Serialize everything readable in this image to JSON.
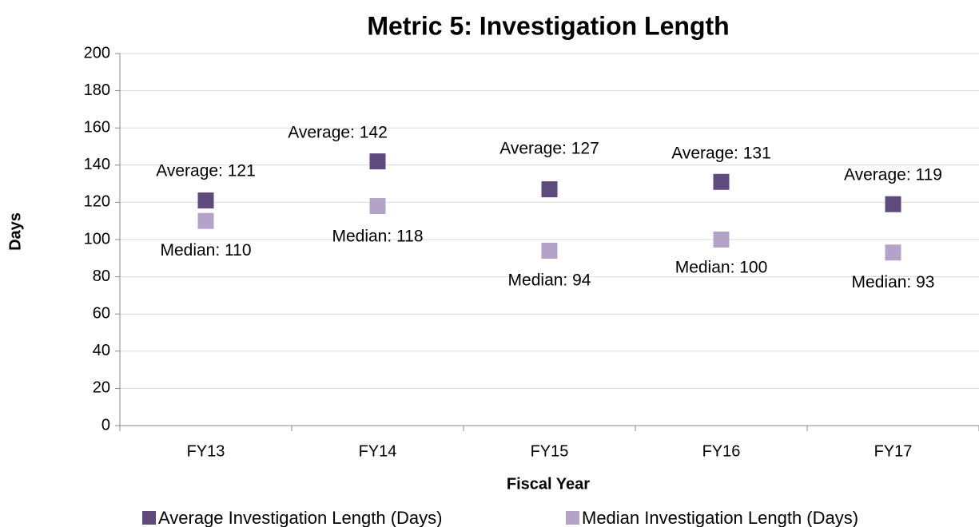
{
  "chart_data": {
    "type": "scatter",
    "title": "Metric 5: Investigation Length",
    "x_label": "Fiscal Year",
    "y_label": "Days",
    "categories": [
      "FY13",
      "FY14",
      "FY15",
      "FY16",
      "FY17"
    ],
    "series": [
      {
        "name": "Average Investigation Length (Days)",
        "color": "#5f4a7e",
        "values": [
          121,
          142,
          127,
          131,
          119
        ],
        "value_labels": [
          "Average: 121",
          "Average: 142",
          "Average: 127",
          "Average: 131",
          "Average: 119"
        ]
      },
      {
        "name": "Median Investigation Length (Days)",
        "color": "#b3a3c9",
        "values": [
          110,
          118,
          94,
          100,
          93
        ],
        "value_labels": [
          "Median: 110",
          "Median: 118",
          "Median: 94",
          "Median: 100",
          "Median: 93"
        ]
      }
    ],
    "ylim": [
      0,
      200
    ],
    "yticks": [
      0,
      20,
      40,
      60,
      80,
      100,
      120,
      140,
      160,
      180,
      200
    ],
    "grid": true
  }
}
